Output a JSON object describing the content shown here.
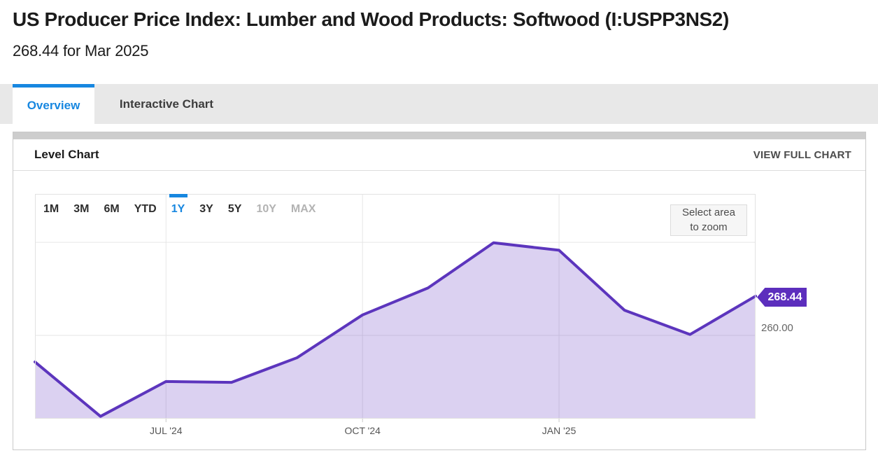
{
  "page": {
    "title": "US Producer Price Index: Lumber and Wood Products: Softwood (I:USPP3NS2)",
    "subtitle": "268.44 for Mar 2025"
  },
  "tabs": [
    {
      "label": "Overview",
      "active": true
    },
    {
      "label": "Interactive Chart",
      "active": false
    }
  ],
  "panel": {
    "title": "Level Chart",
    "action": "VIEW FULL CHART"
  },
  "range_selector": {
    "options": [
      {
        "label": "1M",
        "state": "normal"
      },
      {
        "label": "3M",
        "state": "normal"
      },
      {
        "label": "6M",
        "state": "normal"
      },
      {
        "label": "YTD",
        "state": "normal"
      },
      {
        "label": "1Y",
        "state": "active"
      },
      {
        "label": "3Y",
        "state": "normal"
      },
      {
        "label": "5Y",
        "state": "normal"
      },
      {
        "label": "10Y",
        "state": "disabled"
      },
      {
        "label": "MAX",
        "state": "disabled"
      }
    ]
  },
  "zoom_hint": {
    "line1": "Select area",
    "line2": "to zoom"
  },
  "chart_data": {
    "type": "area",
    "title": "Level Chart",
    "series_name": "US Producer Price Index: Lumber and Wood Products: Softwood",
    "x": [
      "Apr 2024",
      "May 2024",
      "Jun 2024",
      "Jul 2024",
      "Aug 2024",
      "Sep 2024",
      "Oct 2024",
      "Nov 2024",
      "Dec 2024",
      "Jan 2025",
      "Feb 2025",
      "Mar 2025"
    ],
    "values": [
      254.3,
      242.6,
      250.1,
      249.9,
      255.2,
      264.4,
      270.2,
      279.9,
      278.3,
      265.4,
      260.2,
      268.44
    ],
    "ylim": [
      242.1,
      290.4
    ],
    "y_gridlines": [
      260,
      280
    ],
    "x_ticks": [
      {
        "index": 2,
        "label": "JUL '24"
      },
      {
        "index": 5,
        "label": "OCT '24"
      },
      {
        "index": 8,
        "label": "JAN '25"
      }
    ],
    "right_axis_label": "260.00",
    "last_value_badge": "268.44",
    "grid": true,
    "legend": false,
    "colors": {
      "line": "#5c35bd",
      "fill": "rgba(92,46,189,0.22)",
      "badge": "#5c2ebd",
      "gridline": "#e6e6e6",
      "plot_border": "#e2e2e2",
      "accent_blue": "#1787e0"
    }
  }
}
